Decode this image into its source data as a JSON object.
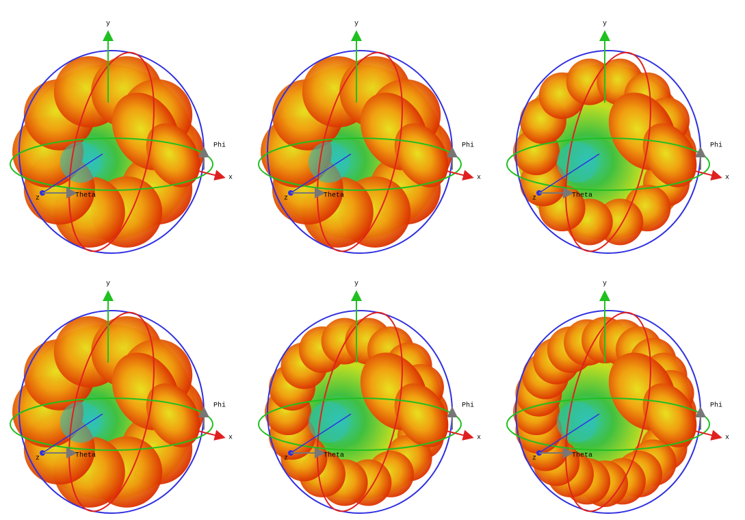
{
  "panels": [
    {
      "x": "x",
      "y": "y",
      "z": "z",
      "phi": "Phi",
      "theta": "Theta"
    },
    {
      "x": "x",
      "y": "y",
      "z": "z",
      "phi": "Phi",
      "theta": "Theta"
    },
    {
      "x": "x",
      "y": "y",
      "z": "z",
      "phi": "Phi",
      "theta": "Theta"
    },
    {
      "x": "x",
      "y": "y",
      "z": "z",
      "phi": "Phi",
      "theta": "Theta"
    },
    {
      "x": "x",
      "y": "y",
      "z": "z",
      "phi": "Phi",
      "theta": "Theta"
    },
    {
      "x": "x",
      "y": "y",
      "z": "z",
      "phi": "Phi",
      "theta": "Theta"
    }
  ]
}
